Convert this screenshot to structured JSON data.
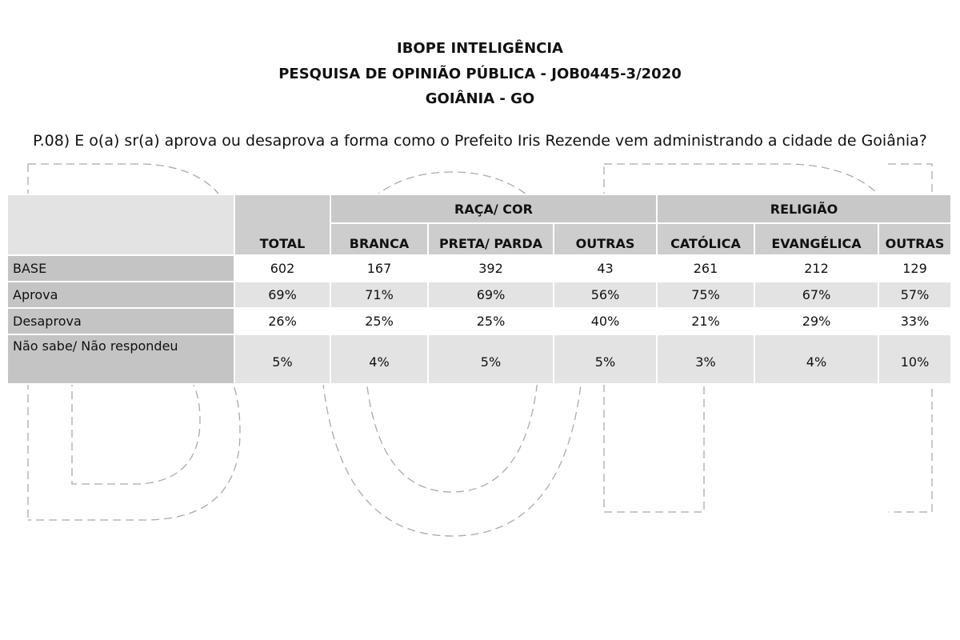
{
  "header": {
    "line1": "IBOPE INTELIGÊNCIA",
    "line2": "PESQUISA DE OPINIÃO PÚBLICA - JOB0445-3/2020",
    "line3": "GOIÂNIA - GO"
  },
  "question": "P.08) E o(a) sr(a) aprova ou desaprova a forma como o Prefeito Iris Rezende vem administrando a cidade de Goiânia?",
  "watermark": "IBOPE",
  "table": {
    "groups": [
      "RAÇA/ COR",
      "RELIGIÃO"
    ],
    "columns": [
      "TOTAL",
      "BRANCA",
      "PRETA/ PARDA",
      "OUTRAS",
      "CATÓLICA",
      "EVANGÉLICA",
      "OUTRAS"
    ],
    "rows": [
      {
        "label": "BASE",
        "values": [
          "602",
          "167",
          "392",
          "43",
          "261",
          "212",
          "129"
        ]
      },
      {
        "label": "Aprova",
        "values": [
          "69%",
          "71%",
          "69%",
          "56%",
          "75%",
          "67%",
          "57%"
        ]
      },
      {
        "label": "Desaprova",
        "values": [
          "26%",
          "25%",
          "25%",
          "40%",
          "21%",
          "29%",
          "33%"
        ]
      },
      {
        "label": "Não sabe/ Não respondeu",
        "values": [
          "5%",
          "4%",
          "5%",
          "5%",
          "3%",
          "4%",
          "10%"
        ]
      }
    ]
  }
}
